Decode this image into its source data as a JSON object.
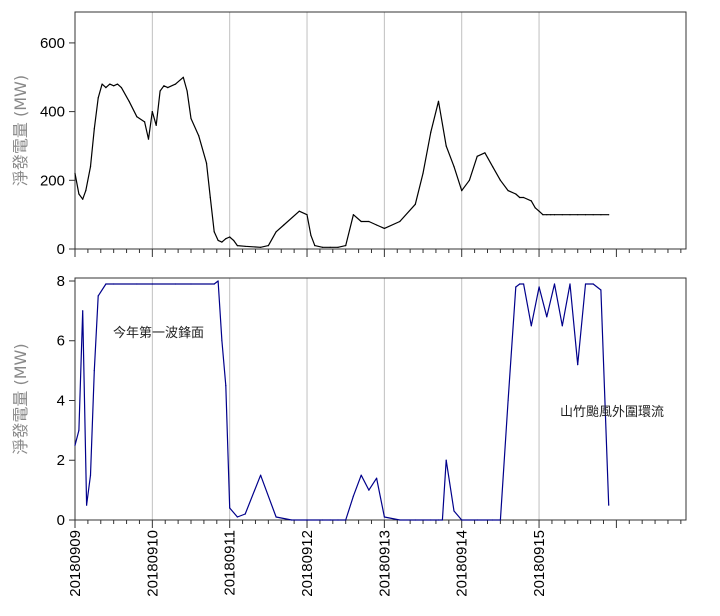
{
  "chart_data": [
    {
      "type": "line",
      "title": "",
      "xlabel": "",
      "ylabel": "淨發電量 (MW)",
      "color": "#000000",
      "ylim": [
        0,
        690
      ],
      "xlim": [
        0,
        7.9
      ],
      "yticks": [
        "0",
        "200",
        "400",
        "600"
      ],
      "ytick_values": [
        0,
        200,
        400,
        600
      ],
      "grid_x": true,
      "x": [
        0,
        0.05,
        0.1,
        0.14,
        0.2,
        0.25,
        0.3,
        0.35,
        0.4,
        0.45,
        0.5,
        0.55,
        0.6,
        0.7,
        0.8,
        0.9,
        0.95,
        1.0,
        1.05,
        1.1,
        1.15,
        1.2,
        1.3,
        1.4,
        1.45,
        1.5,
        1.6,
        1.7,
        1.75,
        1.8,
        1.85,
        1.9,
        1.95,
        2.0,
        2.05,
        2.1,
        2.2,
        2.4,
        2.5,
        2.6,
        2.7,
        2.9,
        3.0,
        3.05,
        3.1,
        3.2,
        3.3,
        3.4,
        3.5,
        3.6,
        3.7,
        3.8,
        3.9,
        4.0,
        4.2,
        4.4,
        4.5,
        4.6,
        4.7,
        4.8,
        4.9,
        5.0,
        5.1,
        5.2,
        5.3,
        5.4,
        5.5,
        5.6,
        5.7,
        5.75,
        5.8,
        5.9,
        5.95,
        6.0,
        6.05,
        6.1,
        6.15,
        6.2,
        6.3,
        6.4,
        6.5,
        6.6,
        6.7,
        6.8,
        6.9
      ],
      "values": [
        220,
        160,
        145,
        170,
        240,
        350,
        440,
        480,
        470,
        480,
        475,
        480,
        470,
        430,
        385,
        370,
        320,
        400,
        360,
        460,
        475,
        470,
        480,
        500,
        460,
        380,
        330,
        250,
        150,
        50,
        25,
        20,
        30,
        35,
        25,
        10,
        8,
        5,
        10,
        50,
        70,
        110,
        100,
        40,
        10,
        5,
        5,
        5,
        10,
        100,
        80,
        80,
        70,
        60,
        80,
        130,
        220,
        340,
        430,
        300,
        240,
        170,
        200,
        270,
        280,
        240,
        200,
        170,
        160,
        150,
        150,
        140,
        120,
        110,
        100,
        100,
        100,
        100,
        100,
        100,
        100,
        100,
        100,
        100,
        100
      ]
    },
    {
      "type": "line",
      "title": "",
      "xlabel": "",
      "ylabel": "淨發電量 (MW)",
      "color": "#00008b",
      "ylim": [
        0,
        8.1
      ],
      "xlim": [
        0,
        7.9
      ],
      "yticks": [
        "0",
        "2",
        "4",
        "6",
        "8"
      ],
      "ytick_values": [
        0,
        2,
        4,
        6,
        8
      ],
      "grid_x": true,
      "x": [
        0,
        0.05,
        0.1,
        0.15,
        0.2,
        0.25,
        0.3,
        0.4,
        0.5,
        0.8,
        1.0,
        1.3,
        1.5,
        1.8,
        1.85,
        1.9,
        1.95,
        2.0,
        2.1,
        2.2,
        2.4,
        2.6,
        2.8,
        3.0,
        3.2,
        3.3,
        3.4,
        3.5,
        3.6,
        3.7,
        3.8,
        3.9,
        4.0,
        4.2,
        4.4,
        4.6,
        4.7,
        4.75,
        4.8,
        4.9,
        5.0,
        5.2,
        5.4,
        5.5,
        5.6,
        5.7,
        5.75,
        5.8,
        5.9,
        6.0,
        6.1,
        6.2,
        6.3,
        6.4,
        6.5,
        6.6,
        6.7,
        6.8,
        6.9
      ],
      "values": [
        2.5,
        3.0,
        7.0,
        0.5,
        1.5,
        5.0,
        7.5,
        7.9,
        7.9,
        7.9,
        7.9,
        7.9,
        7.9,
        7.9,
        8.0,
        6.0,
        4.5,
        0.4,
        0.1,
        0.2,
        1.5,
        0.1,
        0.0,
        0.0,
        0.0,
        0.0,
        0.0,
        0.0,
        0.8,
        1.5,
        1.0,
        1.4,
        0.1,
        0.0,
        0.0,
        0.0,
        0.0,
        0.0,
        2.0,
        0.3,
        0.0,
        0.0,
        0.0,
        0.0,
        4.0,
        7.8,
        7.9,
        7.9,
        6.5,
        7.8,
        6.8,
        7.9,
        6.5,
        7.9,
        5.2,
        7.9,
        7.9,
        7.7,
        0.5
      ]
    }
  ],
  "x_tick_labels": [
    "20180909",
    "20180910",
    "20180911",
    "20180912",
    "20180913",
    "20180914",
    "20180915"
  ],
  "annotations": {
    "front": "今年第一波鋒面",
    "typhoon": "山竹颱風外圍環流"
  }
}
